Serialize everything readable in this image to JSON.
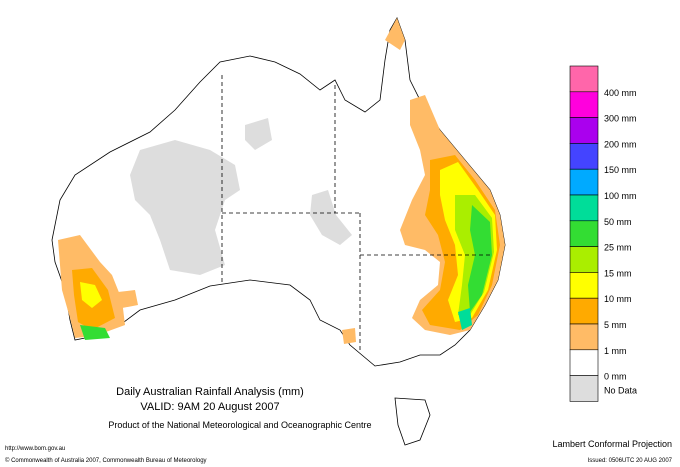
{
  "map": {
    "title": "Daily Australian Rainfall Analysis (mm)",
    "valid": "VALID: 9AM 20 August 2007",
    "product": "Product of the National Meteorological and Oceanographic Centre",
    "url": "http://www.bom.gov.au",
    "copyright": "© Commonwealth of Australia 2007, Commonwealth Bureau of Meteorology",
    "projection": "Lambert Conformal Projection",
    "issued": "Issued: 0506UTC 20 AUG 2007"
  },
  "legend": {
    "boxes": [
      "#ff66aa",
      "#ff00dd",
      "#aa00ee",
      "#4444ff",
      "#00aaff",
      "#00dd99",
      "#33dd33",
      "#aaee00",
      "#ffff00",
      "#ffaa00",
      "#ffbb66",
      "#ffffff",
      "#dddddd"
    ],
    "labels": [
      "400 mm",
      "300 mm",
      "200 mm",
      "150 mm",
      "100 mm",
      "50 mm",
      "25 mm",
      "15 mm",
      "10 mm",
      "5 mm",
      "1 mm",
      "0 mm",
      "No Data"
    ]
  }
}
